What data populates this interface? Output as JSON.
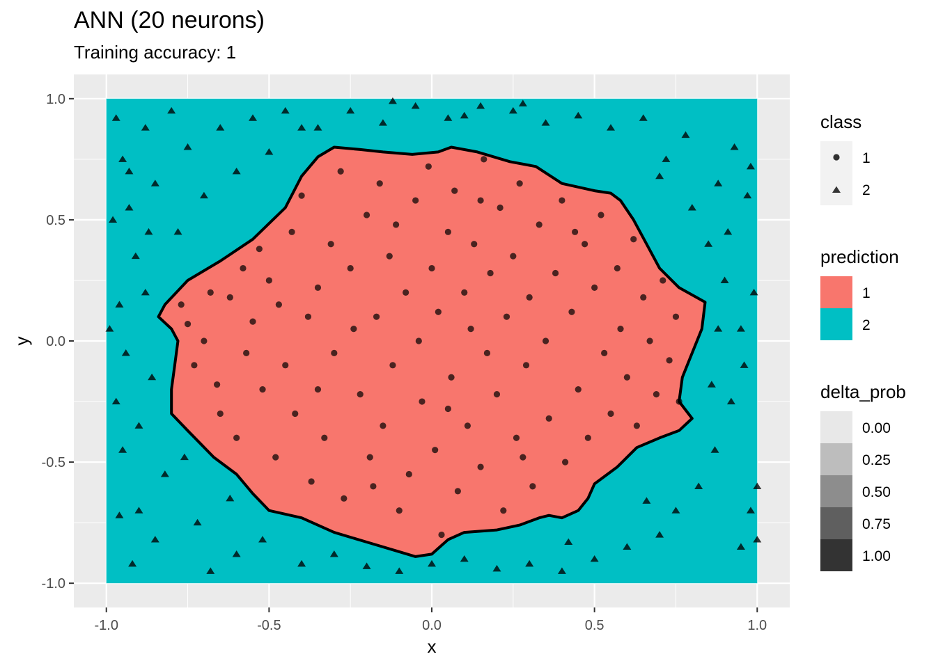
{
  "chart_data": {
    "type": "scatter",
    "title": "ANN (20 neurons)",
    "subtitle": "Training accuracy: 1",
    "xlabel": "x",
    "ylabel": "y",
    "xlim": [
      -1.1,
      1.1
    ],
    "ylim": [
      -1.1,
      1.1
    ],
    "x_ticks": [
      "-1.0",
      "-0.5",
      "0.0",
      "0.5",
      "1.0"
    ],
    "y_ticks": [
      "1.0",
      "0.5",
      "0.0",
      "-0.5",
      "-1.0"
    ],
    "x_tick_values": [
      -1.0,
      -0.5,
      0.0,
      0.5,
      1.0
    ],
    "y_tick_values": [
      1.0,
      0.5,
      0.0,
      -0.5,
      -1.0
    ],
    "grid": true,
    "colors": {
      "panel_background": "#EBEBEB",
      "grid": "#FFFFFF",
      "prediction_1": "#F8766D",
      "prediction_2": "#00BFC4",
      "boundary": "#000000",
      "points": "#000000"
    },
    "decision_boundary": [
      [
        -0.3,
        0.8
      ],
      [
        -0.22,
        0.79
      ],
      [
        -0.15,
        0.78
      ],
      [
        -0.06,
        0.77
      ],
      [
        0.02,
        0.78
      ],
      [
        0.06,
        0.8
      ],
      [
        0.14,
        0.78
      ],
      [
        0.24,
        0.74
      ],
      [
        0.32,
        0.72
      ],
      [
        0.4,
        0.65
      ],
      [
        0.5,
        0.62
      ],
      [
        0.55,
        0.61
      ],
      [
        0.58,
        0.58
      ],
      [
        0.62,
        0.5
      ],
      [
        0.66,
        0.4
      ],
      [
        0.7,
        0.3
      ],
      [
        0.76,
        0.22
      ],
      [
        0.84,
        0.16
      ],
      [
        0.83,
        0.05
      ],
      [
        0.8,
        -0.05
      ],
      [
        0.77,
        -0.15
      ],
      [
        0.76,
        -0.25
      ],
      [
        0.8,
        -0.32
      ],
      [
        0.76,
        -0.37
      ],
      [
        0.7,
        -0.4
      ],
      [
        0.63,
        -0.44
      ],
      [
        0.57,
        -0.52
      ],
      [
        0.5,
        -0.59
      ],
      [
        0.48,
        -0.65
      ],
      [
        0.45,
        -0.7
      ],
      [
        0.4,
        -0.73
      ],
      [
        0.36,
        -0.72
      ],
      [
        0.33,
        -0.73
      ],
      [
        0.27,
        -0.76
      ],
      [
        0.2,
        -0.78
      ],
      [
        0.1,
        -0.79
      ],
      [
        0.05,
        -0.82
      ],
      [
        0.0,
        -0.88
      ],
      [
        -0.05,
        -0.89
      ],
      [
        -0.1,
        -0.87
      ],
      [
        -0.2,
        -0.83
      ],
      [
        -0.3,
        -0.79
      ],
      [
        -0.4,
        -0.73
      ],
      [
        -0.5,
        -0.7
      ],
      [
        -0.55,
        -0.63
      ],
      [
        -0.6,
        -0.55
      ],
      [
        -0.67,
        -0.48
      ],
      [
        -0.75,
        -0.37
      ],
      [
        -0.8,
        -0.3
      ],
      [
        -0.8,
        -0.2
      ],
      [
        -0.79,
        -0.1
      ],
      [
        -0.78,
        0.0
      ],
      [
        -0.8,
        0.05
      ],
      [
        -0.84,
        0.1
      ],
      [
        -0.82,
        0.15
      ],
      [
        -0.75,
        0.25
      ],
      [
        -0.65,
        0.33
      ],
      [
        -0.55,
        0.42
      ],
      [
        -0.45,
        0.55
      ],
      [
        -0.4,
        0.68
      ],
      [
        -0.35,
        0.76
      ]
    ],
    "series": [
      {
        "name": "1",
        "shape": "circle",
        "points": [
          [
            -0.77,
            0.15
          ],
          [
            -0.75,
            0.07
          ],
          [
            -0.73,
            -0.1
          ],
          [
            -0.7,
            0.0
          ],
          [
            -0.68,
            0.2
          ],
          [
            -0.65,
            -0.3
          ],
          [
            -0.62,
            0.18
          ],
          [
            -0.6,
            -0.4
          ],
          [
            -0.58,
            0.3
          ],
          [
            -0.57,
            -0.05
          ],
          [
            -0.55,
            0.08
          ],
          [
            -0.53,
            0.38
          ],
          [
            -0.52,
            -0.2
          ],
          [
            -0.5,
            0.25
          ],
          [
            -0.48,
            -0.48
          ],
          [
            -0.47,
            0.15
          ],
          [
            -0.45,
            -0.1
          ],
          [
            -0.43,
            0.45
          ],
          [
            -0.42,
            -0.3
          ],
          [
            -0.4,
            0.6
          ],
          [
            -0.38,
            0.1
          ],
          [
            -0.37,
            -0.58
          ],
          [
            -0.35,
            0.22
          ],
          [
            -0.33,
            -0.4
          ],
          [
            -0.31,
            0.4
          ],
          [
            -0.3,
            -0.05
          ],
          [
            -0.28,
            0.7
          ],
          [
            -0.27,
            -0.65
          ],
          [
            -0.25,
            0.3
          ],
          [
            -0.24,
            0.05
          ],
          [
            -0.22,
            -0.22
          ],
          [
            -0.2,
            0.52
          ],
          [
            -0.19,
            -0.48
          ],
          [
            -0.17,
            0.1
          ],
          [
            -0.16,
            0.65
          ],
          [
            -0.15,
            -0.35
          ],
          [
            -0.13,
            0.35
          ],
          [
            -0.12,
            -0.1
          ],
          [
            -0.11,
            0.48
          ],
          [
            -0.1,
            -0.7
          ],
          [
            -0.08,
            0.2
          ],
          [
            -0.07,
            -0.55
          ],
          [
            -0.05,
            0.58
          ],
          [
            -0.04,
            0.0
          ],
          [
            -0.03,
            -0.25
          ],
          [
            -0.01,
            0.72
          ],
          [
            0.0,
            0.3
          ],
          [
            0.01,
            -0.45
          ],
          [
            0.02,
            0.12
          ],
          [
            0.03,
            -0.8
          ],
          [
            0.05,
            0.45
          ],
          [
            0.06,
            -0.15
          ],
          [
            0.07,
            0.62
          ],
          [
            0.08,
            -0.62
          ],
          [
            0.1,
            0.2
          ],
          [
            0.11,
            -0.35
          ],
          [
            0.12,
            0.05
          ],
          [
            0.13,
            0.4
          ],
          [
            0.15,
            -0.52
          ],
          [
            0.16,
            0.75
          ],
          [
            0.17,
            -0.05
          ],
          [
            0.18,
            0.28
          ],
          [
            0.2,
            -0.22
          ],
          [
            0.21,
            0.55
          ],
          [
            0.22,
            -0.7
          ],
          [
            0.23,
            0.1
          ],
          [
            0.25,
            0.35
          ],
          [
            0.26,
            -0.4
          ],
          [
            0.27,
            0.65
          ],
          [
            0.29,
            -0.1
          ],
          [
            0.3,
            0.18
          ],
          [
            0.31,
            -0.6
          ],
          [
            0.33,
            0.48
          ],
          [
            0.35,
            0.0
          ],
          [
            0.36,
            -0.32
          ],
          [
            0.38,
            0.28
          ],
          [
            0.4,
            0.58
          ],
          [
            0.41,
            -0.5
          ],
          [
            0.43,
            0.12
          ],
          [
            0.45,
            -0.2
          ],
          [
            0.47,
            0.4
          ],
          [
            0.48,
            -0.4
          ],
          [
            0.5,
            0.22
          ],
          [
            0.52,
            0.52
          ],
          [
            0.53,
            -0.05
          ],
          [
            0.55,
            -0.3
          ],
          [
            0.57,
            0.3
          ],
          [
            0.58,
            0.05
          ],
          [
            0.6,
            -0.15
          ],
          [
            0.62,
            0.42
          ],
          [
            0.63,
            -0.35
          ],
          [
            0.65,
            0.18
          ],
          [
            0.67,
            0.0
          ],
          [
            0.69,
            -0.22
          ],
          [
            0.71,
            0.25
          ],
          [
            0.73,
            -0.08
          ],
          [
            0.75,
            0.1
          ],
          [
            0.76,
            -0.25
          ],
          [
            -0.66,
            -0.18
          ],
          [
            -0.35,
            -0.2
          ],
          [
            0.15,
            0.58
          ],
          [
            0.05,
            -0.28
          ],
          [
            -0.18,
            -0.6
          ],
          [
            0.28,
            -0.48
          ],
          [
            0.44,
            0.45
          ]
        ]
      },
      {
        "name": "2",
        "shape": "triangle",
        "points": [
          [
            -0.97,
            0.92
          ],
          [
            -0.95,
            0.75
          ],
          [
            -0.93,
            0.55
          ],
          [
            -0.91,
            0.35
          ],
          [
            -0.96,
            0.15
          ],
          [
            -0.94,
            -0.05
          ],
          [
            -0.97,
            -0.25
          ],
          [
            -0.95,
            -0.45
          ],
          [
            -0.96,
            -0.72
          ],
          [
            -0.92,
            -0.92
          ],
          [
            -0.88,
            0.88
          ],
          [
            -0.85,
            0.65
          ],
          [
            -0.87,
            0.45
          ],
          [
            -0.82,
            -0.55
          ],
          [
            -0.85,
            -0.82
          ],
          [
            -0.8,
            0.95
          ],
          [
            -0.75,
            0.8
          ],
          [
            -0.7,
            0.6
          ],
          [
            -0.72,
            -0.75
          ],
          [
            -0.68,
            -0.95
          ],
          [
            -0.65,
            0.88
          ],
          [
            -0.6,
            0.7
          ],
          [
            -0.62,
            -0.65
          ],
          [
            -0.55,
            0.92
          ],
          [
            -0.5,
            0.78
          ],
          [
            -0.52,
            -0.82
          ],
          [
            -0.45,
            0.95
          ],
          [
            -0.4,
            -0.92
          ],
          [
            -0.35,
            0.88
          ],
          [
            -0.3,
            -0.88
          ],
          [
            -0.25,
            0.95
          ],
          [
            -0.2,
            -0.93
          ],
          [
            -0.15,
            0.9
          ],
          [
            -0.1,
            -0.95
          ],
          [
            -0.05,
            0.97
          ],
          [
            0.0,
            -0.92
          ],
          [
            0.05,
            0.92
          ],
          [
            0.1,
            -0.9
          ],
          [
            0.15,
            0.97
          ],
          [
            0.2,
            -0.94
          ],
          [
            0.25,
            0.95
          ],
          [
            0.3,
            -0.92
          ],
          [
            0.35,
            0.9
          ],
          [
            0.4,
            -0.95
          ],
          [
            0.45,
            0.93
          ],
          [
            0.5,
            -0.9
          ],
          [
            0.55,
            0.88
          ],
          [
            0.6,
            -0.85
          ],
          [
            0.65,
            0.92
          ],
          [
            0.7,
            -0.8
          ],
          [
            0.72,
            0.75
          ],
          [
            0.75,
            -0.7
          ],
          [
            0.78,
            0.85
          ],
          [
            0.8,
            0.55
          ],
          [
            0.82,
            -0.6
          ],
          [
            0.85,
            0.4
          ],
          [
            0.87,
            -0.45
          ],
          [
            0.88,
            0.65
          ],
          [
            0.9,
            0.25
          ],
          [
            0.92,
            -0.25
          ],
          [
            0.93,
            0.8
          ],
          [
            0.95,
            0.05
          ],
          [
            0.96,
            -0.1
          ],
          [
            0.97,
            0.6
          ],
          [
            0.98,
            -0.7
          ],
          [
            0.95,
            -0.85
          ],
          [
            0.98,
            0.72
          ],
          [
            1.0,
            -0.82
          ],
          [
            0.99,
            0.2
          ],
          [
            1.0,
            -0.6
          ],
          [
            -0.99,
            0.05
          ],
          [
            -0.98,
            0.5
          ],
          [
            -0.9,
            -0.35
          ],
          [
            -0.88,
            0.2
          ],
          [
            -0.86,
            -0.15
          ],
          [
            -0.93,
            0.7
          ],
          [
            -0.9,
            -0.7
          ],
          [
            0.88,
            0.05
          ],
          [
            0.86,
            -0.18
          ],
          [
            0.91,
            0.45
          ],
          [
            -0.78,
            0.45
          ],
          [
            -0.76,
            -0.48
          ],
          [
            0.7,
            0.68
          ],
          [
            0.66,
            -0.66
          ],
          [
            -0.4,
            0.88
          ],
          [
            0.1,
            0.93
          ],
          [
            -0.12,
            0.99
          ],
          [
            0.28,
            0.98
          ],
          [
            -0.6,
            -0.88
          ],
          [
            0.42,
            -0.83
          ]
        ]
      }
    ],
    "legends": {
      "class": {
        "title": "class",
        "items": [
          {
            "label": "1",
            "shape": "circle"
          },
          {
            "label": "2",
            "shape": "triangle"
          }
        ]
      },
      "prediction": {
        "title": "prediction",
        "items": [
          {
            "label": "1",
            "color": "#F8766D"
          },
          {
            "label": "2",
            "color": "#00BFC4"
          }
        ]
      },
      "delta_prob": {
        "title": "delta_prob",
        "items": [
          {
            "label": "0.00",
            "color": "#E8E8E8"
          },
          {
            "label": "0.25",
            "color": "#BDBDBD"
          },
          {
            "label": "0.50",
            "color": "#8D8D8D"
          },
          {
            "label": "0.75",
            "color": "#5F5F5F"
          },
          {
            "label": "1.00",
            "color": "#333333"
          }
        ]
      }
    },
    "legend_position": "right"
  }
}
